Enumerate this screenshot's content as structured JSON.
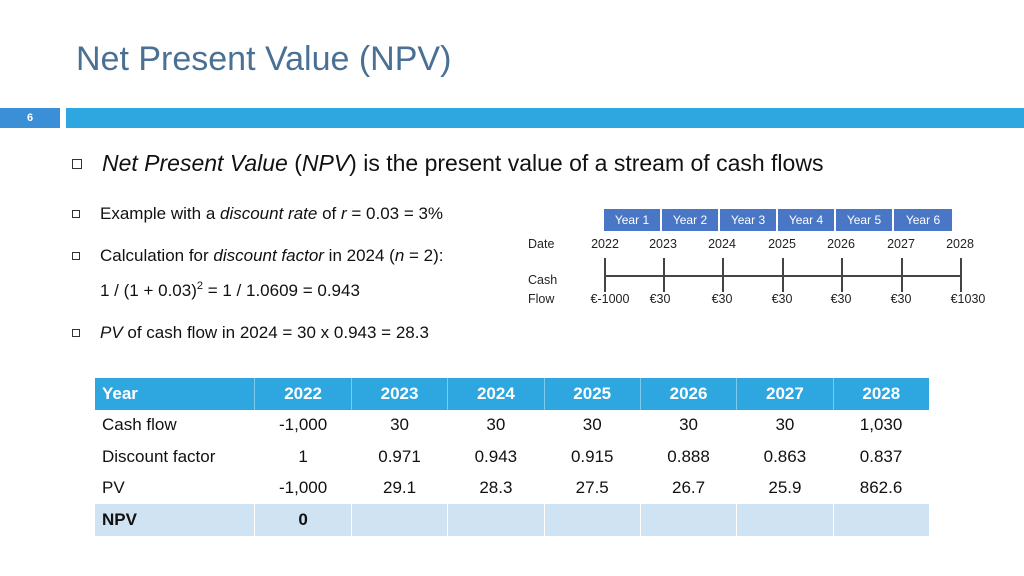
{
  "slide": {
    "title": "Net Present Value (NPV)",
    "number": "6"
  },
  "bullets": {
    "main": {
      "term": "Net Present Value",
      "open_paren": " (",
      "abbr": "NPV",
      "rest": ") is the present value of a stream of cash flows"
    },
    "example": {
      "prefix": "Example with a ",
      "term": "discount rate",
      "of": " of ",
      "var": "r",
      "rest": " = 0.03 = 3%"
    },
    "calc": {
      "prefix": "Calculation for ",
      "term": "discount factor",
      "mid": " in 2024 (",
      "var": "n",
      "rest": " = 2):",
      "formula_a": "1 / (1 + 0.03)",
      "formula_exp": "2",
      "formula_b": " = 1 / 1.0609 = 0.943"
    },
    "pv": {
      "term": "PV",
      "rest": " of cash flow in 2024 = 30 x 0.943 = 28.3"
    }
  },
  "timeline": {
    "year_labels": [
      "Year 1",
      "Year 2",
      "Year 3",
      "Year 4",
      "Year 5",
      "Year 6"
    ],
    "date_label": "Date",
    "cash_label_1": "Cash",
    "cash_label_2": "Flow",
    "dates": [
      "2022",
      "2023",
      "2024",
      "2025",
      "2026",
      "2027",
      "2028"
    ],
    "flows": [
      "€-1000",
      "€30",
      "€30",
      "€30",
      "€30",
      "€30",
      "€1030"
    ]
  },
  "table": {
    "headers": [
      "Year",
      "2022",
      "2023",
      "2024",
      "2025",
      "2026",
      "2027",
      "2028"
    ],
    "rows": [
      [
        "Cash flow",
        "-1,000",
        "30",
        "30",
        "30",
        "30",
        "30",
        "1,030"
      ],
      [
        "Discount factor",
        "1",
        "0.971",
        "0.943",
        "0.915",
        "0.888",
        "0.863",
        "0.837"
      ],
      [
        "PV",
        "-1,000",
        "29.1",
        "28.3",
        "27.5",
        "26.7",
        "25.9",
        "862.6"
      ]
    ],
    "npv_label": "NPV",
    "npv_value": "0"
  }
}
